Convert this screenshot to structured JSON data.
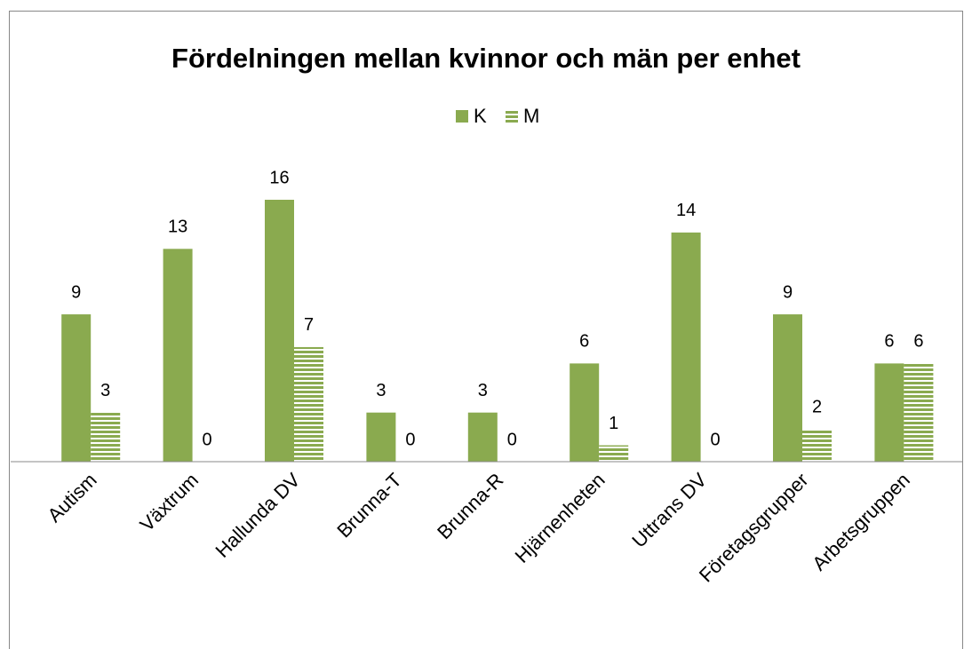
{
  "chart_data": {
    "type": "bar",
    "title": "Fördelningen mellan kvinnor och män per enhet",
    "categories": [
      "Autism",
      "Växtrum",
      "Hallunda DV",
      "Brunna-T",
      "Brunna-R",
      "Hjärnenheten",
      "Uttrans DV",
      "Företagsgrupper",
      "Arbetsgruppen"
    ],
    "series": [
      {
        "name": "K",
        "color": "#8aaa4f",
        "values": [
          9,
          13,
          16,
          3,
          3,
          6,
          14,
          9,
          6
        ]
      },
      {
        "name": "M",
        "color": "#8aaa4f",
        "pattern": "horizontal-stripes",
        "values": [
          3,
          0,
          7,
          0,
          0,
          1,
          0,
          2,
          6
        ]
      }
    ],
    "legend": "top"
  }
}
